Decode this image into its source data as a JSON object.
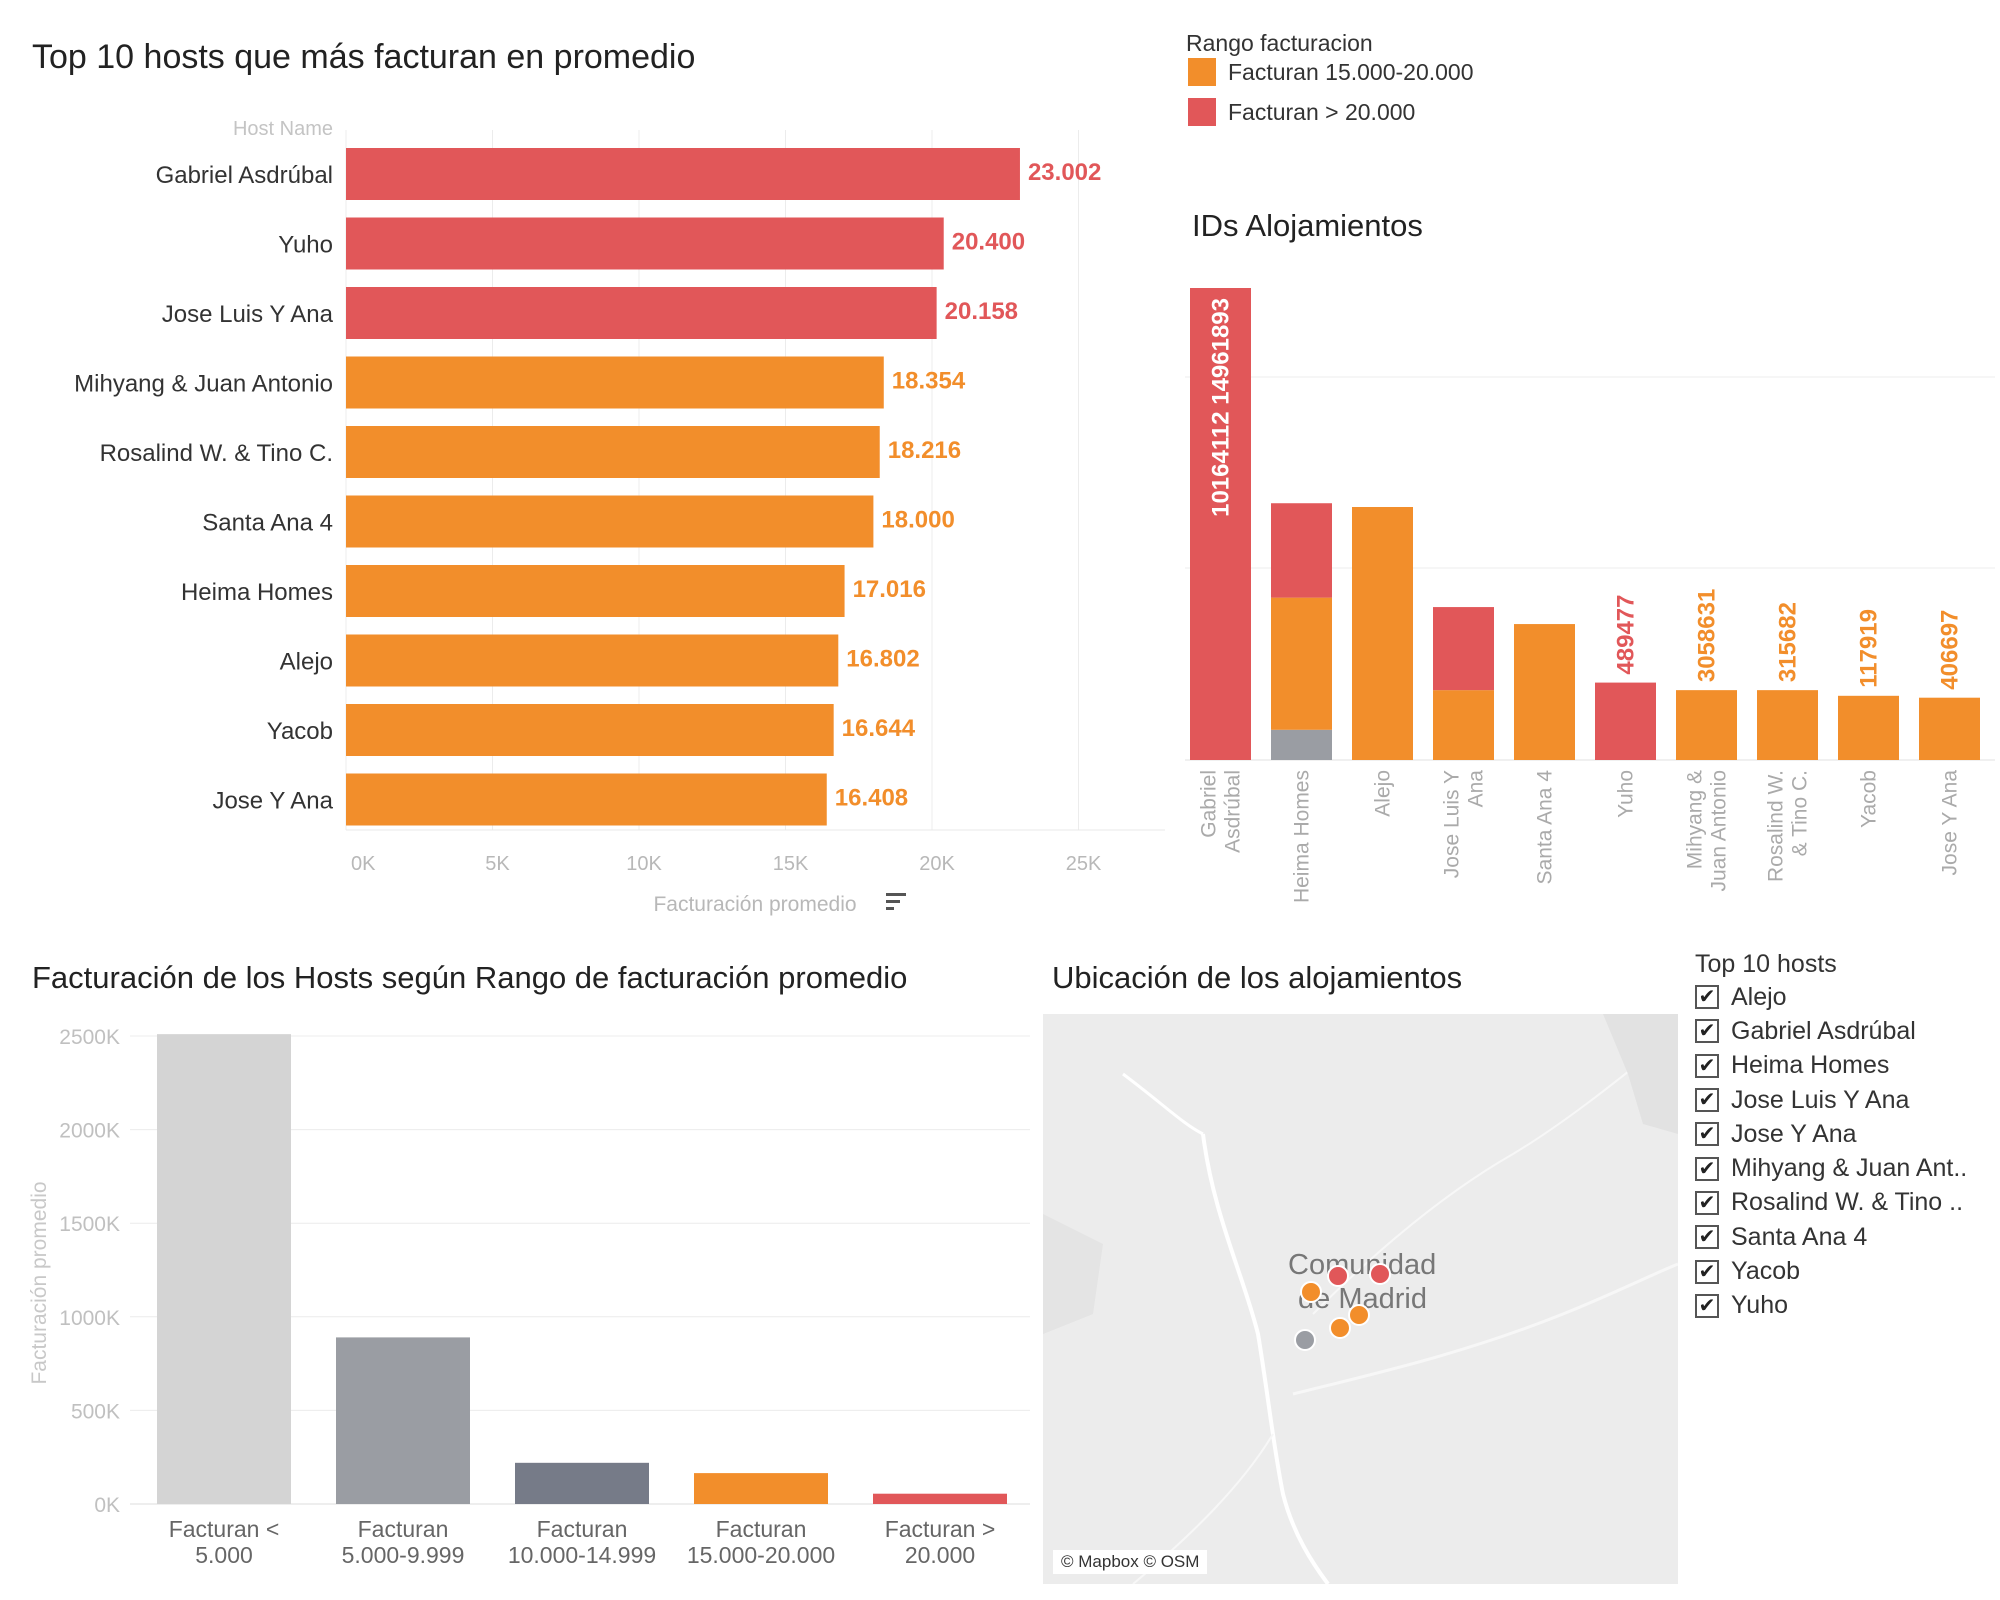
{
  "legend": {
    "title": "Rango facturacion",
    "items": [
      {
        "label": "Facturan 15.000-20.000",
        "color": "#F28E2B"
      },
      {
        "label": "Facturan > 20.000",
        "color": "#E15759"
      }
    ]
  },
  "chart_data": [
    {
      "type": "bar",
      "orientation": "horizontal",
      "title": "Top 10 hosts que más facturan en promedio",
      "header_label": "Host Name",
      "xlabel": "Facturación promedio",
      "xlim": [
        0,
        27500
      ],
      "xticks": [
        0,
        5000,
        10000,
        15000,
        20000,
        25000
      ],
      "xtick_labels": [
        "0K",
        "5K",
        "10K",
        "15K",
        "20K",
        "25K"
      ],
      "categories": [
        "Gabriel Asdrúbal",
        "Yuho",
        "Jose Luis Y Ana",
        "Mihyang & Juan Antonio",
        "Rosalind W.  & Tino C.",
        "Santa Ana 4",
        "Heima Homes",
        "Alejo",
        "Yacob",
        "Jose Y Ana"
      ],
      "values": [
        23002,
        20400,
        20158,
        18354,
        18216,
        18000,
        17016,
        16802,
        16644,
        16408
      ],
      "value_labels": [
        "23.002",
        "20.400",
        "20.158",
        "18.354",
        "18.216",
        "18.000",
        "17.016",
        "16.802",
        "16.644",
        "16.408"
      ],
      "colors": [
        "#E15759",
        "#E15759",
        "#E15759",
        "#F28E2B",
        "#F28E2B",
        "#F28E2B",
        "#F28E2B",
        "#F28E2B",
        "#F28E2B",
        "#F28E2B"
      ],
      "grid": true
    },
    {
      "type": "bar",
      "stacked": true,
      "title": "IDs Alojamientos",
      "ylim": [
        0,
        25
      ],
      "categories": [
        "Gabriel\nAsdrúbal",
        "Heima Homes",
        "Alejo",
        "Jose Luis Y\nAna",
        "Santa Ana 4",
        "Yuho",
        "Mihyang &\nJuan Antonio",
        "Rosalind W.\n& Tino C.",
        "Yacob",
        "Jose Y Ana"
      ],
      "segments": [
        [
          {
            "value": 25,
            "color": "#E15759"
          }
        ],
        [
          {
            "value": 1.6,
            "color": "#9A9DA3"
          },
          {
            "value": 7,
            "color": "#F28E2B"
          },
          {
            "value": 5,
            "color": "#E15759"
          }
        ],
        [
          {
            "value": 13.4,
            "color": "#F28E2B"
          }
        ],
        [
          {
            "value": 3.7,
            "color": "#F28E2B"
          },
          {
            "value": 4.4,
            "color": "#E15759"
          }
        ],
        [
          {
            "value": 7.2,
            "color": "#F28E2B"
          }
        ],
        [
          {
            "value": 4.1,
            "color": "#E15759"
          }
        ],
        [
          {
            "value": 3.7,
            "color": "#F28E2B"
          }
        ],
        [
          {
            "value": 3.7,
            "color": "#F28E2B"
          }
        ],
        [
          {
            "value": 3.4,
            "color": "#F28E2B"
          }
        ],
        [
          {
            "value": 3.3,
            "color": "#F28E2B"
          }
        ]
      ],
      "mark_labels": [
        {
          "category_index": 0,
          "text": "10164112  14961893",
          "color": "#ffffff",
          "inside": true
        },
        {
          "category_index": 5,
          "text": "489477",
          "color": "#E15759"
        },
        {
          "category_index": 6,
          "text": "3058631",
          "color": "#F28E2B"
        },
        {
          "category_index": 7,
          "text": "315682",
          "color": "#F28E2B"
        },
        {
          "category_index": 8,
          "text": "117919",
          "color": "#F28E2B"
        },
        {
          "category_index": 9,
          "text": "406697",
          "color": "#F28E2B"
        }
      ],
      "grid": true
    },
    {
      "type": "bar",
      "title": "Facturación de los Hosts según Rango de facturación promedio",
      "ylabel": "Facturación promedio",
      "ylim": [
        0,
        2500000
      ],
      "yticks": [
        0,
        500000,
        1000000,
        1500000,
        2000000,
        2500000
      ],
      "ytick_labels": [
        "0K",
        "500K",
        "1000K",
        "1500K",
        "2000K",
        "2500K"
      ],
      "categories": [
        "Facturan <\n5.000",
        "Facturan\n5.000-9.999",
        "Facturan\n10.000-14.999",
        "Facturan\n15.000-20.000",
        "Facturan >\n20.000"
      ],
      "values": [
        2510000,
        890000,
        220000,
        165000,
        55000
      ],
      "colors": [
        "#D4D4D4",
        "#9A9DA3",
        "#767B88",
        "#F28E2B",
        "#E15759"
      ],
      "grid": true
    }
  ],
  "map": {
    "title": "Ubicación de los alojamientos",
    "place_label_line1": "Comunidad",
    "place_label_line2": "de Madrid",
    "credit": "© Mapbox © OSM",
    "points": [
      {
        "color": "#E15759"
      },
      {
        "color": "#E15759"
      },
      {
        "color": "#F28E2B"
      },
      {
        "color": "#F28E2B"
      },
      {
        "color": "#F28E2B"
      },
      {
        "color": "#9A9DA3"
      }
    ]
  },
  "filter": {
    "title": "Top 10 hosts",
    "items": [
      {
        "label": "Alejo",
        "checked": true
      },
      {
        "label": "Gabriel Asdrúbal",
        "checked": true
      },
      {
        "label": "Heima Homes",
        "checked": true
      },
      {
        "label": "Jose Luis Y Ana",
        "checked": true
      },
      {
        "label": "Jose Y Ana",
        "checked": true
      },
      {
        "label": "Mihyang & Juan Ant..",
        "checked": true
      },
      {
        "label": "Rosalind W.  & Tino ..",
        "checked": true
      },
      {
        "label": "Santa Ana 4",
        "checked": true
      },
      {
        "label": "Yacob",
        "checked": true
      },
      {
        "label": "Yuho",
        "checked": true
      }
    ]
  }
}
